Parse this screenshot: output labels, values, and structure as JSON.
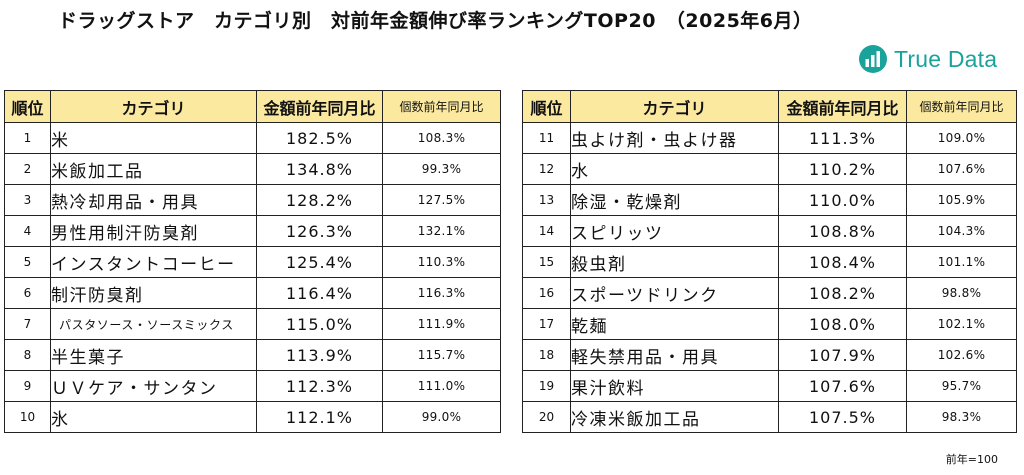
{
  "title": "ドラッグストア　カテゴリ別　対前年金額伸び率ランキングTOP20　（2025年6月）",
  "logo": {
    "text": "True Data",
    "icon": "bar-chart-circle-icon",
    "color": "#1aa39a"
  },
  "header_color": "#fbe9a0",
  "columns": [
    "順位",
    "カテゴリ",
    "金額前年同月比",
    "個数前年同月比"
  ],
  "left_table": {
    "rows": [
      {
        "rank": "1",
        "category": "米",
        "amount": "182.5%",
        "count": "108.3%"
      },
      {
        "rank": "2",
        "category": "米飯加工品",
        "amount": "134.8%",
        "count": "99.3%"
      },
      {
        "rank": "3",
        "category": "熱冷却用品・用具",
        "amount": "128.2%",
        "count": "127.5%"
      },
      {
        "rank": "4",
        "category": "男性用制汗防臭剤",
        "amount": "126.3%",
        "count": "132.1%"
      },
      {
        "rank": "5",
        "category": "インスタントコーヒー",
        "amount": "125.4%",
        "count": "110.3%"
      },
      {
        "rank": "6",
        "category": "制汗防臭剤",
        "amount": "116.4%",
        "count": "116.3%"
      },
      {
        "rank": "7",
        "category": "パスタソース・ソースミックス",
        "amount": "115.0%",
        "count": "111.9%"
      },
      {
        "rank": "8",
        "category": "半生菓子",
        "amount": "113.9%",
        "count": "115.7%"
      },
      {
        "rank": "9",
        "category": "ＵＶケア・サンタン",
        "amount": "112.3%",
        "count": "111.0%"
      },
      {
        "rank": "10",
        "category": "氷",
        "amount": "112.1%",
        "count": "99.0%"
      }
    ]
  },
  "right_table": {
    "rows": [
      {
        "rank": "11",
        "category": "虫よけ剤・虫よけ器",
        "amount": "111.3%",
        "count": "109.0%"
      },
      {
        "rank": "12",
        "category": "水",
        "amount": "110.2%",
        "count": "107.6%"
      },
      {
        "rank": "13",
        "category": "除湿・乾燥剤",
        "amount": "110.0%",
        "count": "105.9%"
      },
      {
        "rank": "14",
        "category": "スピリッツ",
        "amount": "108.8%",
        "count": "104.3%"
      },
      {
        "rank": "15",
        "category": "殺虫剤",
        "amount": "108.4%",
        "count": "101.1%"
      },
      {
        "rank": "16",
        "category": "スポーツドリンク",
        "amount": "108.2%",
        "count": "98.8%"
      },
      {
        "rank": "17",
        "category": "乾麺",
        "amount": "108.0%",
        "count": "102.1%"
      },
      {
        "rank": "18",
        "category": "軽失禁用品・用具",
        "amount": "107.9%",
        "count": "102.6%"
      },
      {
        "rank": "19",
        "category": "果汁飲料",
        "amount": "107.6%",
        "count": "95.7%"
      },
      {
        "rank": "20",
        "category": "冷凍米飯加工品",
        "amount": "107.5%",
        "count": "98.3%"
      }
    ]
  },
  "note": "前年=100"
}
